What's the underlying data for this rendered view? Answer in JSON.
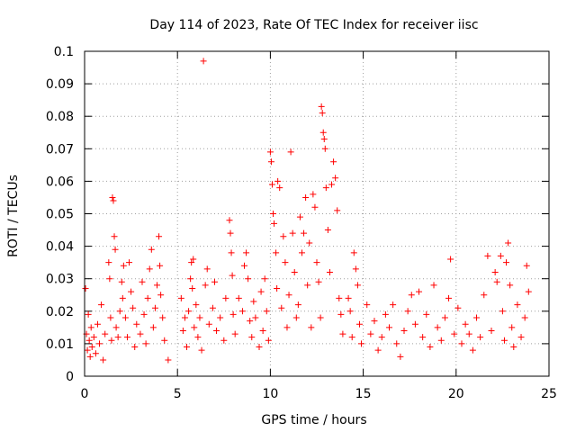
{
  "chart_data": {
    "type": "scatter",
    "title": "Day 114 of 2023, Rate Of TEC Index for receiver iisc",
    "xlabel": "GPS time / hours",
    "ylabel": "ROTI / TECUs",
    "xlim": [
      0,
      25
    ],
    "ylim": [
      0,
      0.1
    ],
    "xticks": [
      0,
      5,
      10,
      15,
      20,
      25
    ],
    "yticks": [
      0,
      0.01,
      0.02,
      0.03,
      0.04,
      0.05,
      0.06,
      0.07,
      0.08,
      0.09,
      0.1
    ],
    "xtick_labels": [
      "0",
      "5",
      "10",
      "15",
      "20",
      "25"
    ],
    "ytick_labels": [
      "0",
      "0.01",
      "0.02",
      "0.03",
      "0.04",
      "0.05",
      "0.06",
      "0.07",
      "0.08",
      "0.09",
      "0.1"
    ],
    "grid": true,
    "marker": "plus",
    "color": "#ff0000",
    "points": [
      [
        0.05,
        0.027
      ],
      [
        0.1,
        0.013
      ],
      [
        0.15,
        0.008
      ],
      [
        0.2,
        0.019
      ],
      [
        0.25,
        0.011
      ],
      [
        0.3,
        0.006
      ],
      [
        0.35,
        0.015
      ],
      [
        0.4,
        0.009
      ],
      [
        0.5,
        0.012
      ],
      [
        0.6,
        0.007
      ],
      [
        0.7,
        0.016
      ],
      [
        0.8,
        0.01
      ],
      [
        0.9,
        0.022
      ],
      [
        1.0,
        0.005
      ],
      [
        1.1,
        0.013
      ],
      [
        1.3,
        0.035
      ],
      [
        1.35,
        0.03
      ],
      [
        1.4,
        0.018
      ],
      [
        1.45,
        0.011
      ],
      [
        1.5,
        0.055
      ],
      [
        1.55,
        0.054
      ],
      [
        1.6,
        0.043
      ],
      [
        1.65,
        0.039
      ],
      [
        1.7,
        0.015
      ],
      [
        1.8,
        0.012
      ],
      [
        1.9,
        0.02
      ],
      [
        2.0,
        0.029
      ],
      [
        2.05,
        0.024
      ],
      [
        2.1,
        0.034
      ],
      [
        2.2,
        0.018
      ],
      [
        2.3,
        0.012
      ],
      [
        2.4,
        0.035
      ],
      [
        2.5,
        0.026
      ],
      [
        2.6,
        0.021
      ],
      [
        2.7,
        0.009
      ],
      [
        2.8,
        0.016
      ],
      [
        3.0,
        0.013
      ],
      [
        3.1,
        0.029
      ],
      [
        3.2,
        0.019
      ],
      [
        3.3,
        0.01
      ],
      [
        3.4,
        0.024
      ],
      [
        3.5,
        0.033
      ],
      [
        3.6,
        0.039
      ],
      [
        3.7,
        0.015
      ],
      [
        3.8,
        0.021
      ],
      [
        3.9,
        0.028
      ],
      [
        4.0,
        0.043
      ],
      [
        4.05,
        0.034
      ],
      [
        4.1,
        0.025
      ],
      [
        4.2,
        0.018
      ],
      [
        4.3,
        0.011
      ],
      [
        4.5,
        0.005
      ],
      [
        5.2,
        0.024
      ],
      [
        5.3,
        0.014
      ],
      [
        5.4,
        0.018
      ],
      [
        5.5,
        0.009
      ],
      [
        5.6,
        0.02
      ],
      [
        5.7,
        0.03
      ],
      [
        5.75,
        0.035
      ],
      [
        5.8,
        0.027
      ],
      [
        5.85,
        0.036
      ],
      [
        5.9,
        0.015
      ],
      [
        6.0,
        0.022
      ],
      [
        6.1,
        0.012
      ],
      [
        6.2,
        0.018
      ],
      [
        6.3,
        0.008
      ],
      [
        6.4,
        0.097
      ],
      [
        6.5,
        0.028
      ],
      [
        6.6,
        0.033
      ],
      [
        6.7,
        0.016
      ],
      [
        6.9,
        0.021
      ],
      [
        7.0,
        0.029
      ],
      [
        7.1,
        0.014
      ],
      [
        7.3,
        0.018
      ],
      [
        7.5,
        0.011
      ],
      [
        7.6,
        0.024
      ],
      [
        7.8,
        0.048
      ],
      [
        7.85,
        0.044
      ],
      [
        7.9,
        0.038
      ],
      [
        7.95,
        0.031
      ],
      [
        8.0,
        0.019
      ],
      [
        8.1,
        0.013
      ],
      [
        8.3,
        0.024
      ],
      [
        8.5,
        0.02
      ],
      [
        8.6,
        0.034
      ],
      [
        8.7,
        0.038
      ],
      [
        8.8,
        0.03
      ],
      [
        8.9,
        0.017
      ],
      [
        9.0,
        0.012
      ],
      [
        9.1,
        0.023
      ],
      [
        9.2,
        0.018
      ],
      [
        9.4,
        0.009
      ],
      [
        9.5,
        0.026
      ],
      [
        9.6,
        0.014
      ],
      [
        9.7,
        0.03
      ],
      [
        9.8,
        0.02
      ],
      [
        9.9,
        0.011
      ],
      [
        10.0,
        0.069
      ],
      [
        10.05,
        0.066
      ],
      [
        10.1,
        0.059
      ],
      [
        10.15,
        0.05
      ],
      [
        10.2,
        0.047
      ],
      [
        10.3,
        0.038
      ],
      [
        10.35,
        0.027
      ],
      [
        10.4,
        0.06
      ],
      [
        10.5,
        0.058
      ],
      [
        10.6,
        0.021
      ],
      [
        10.7,
        0.043
      ],
      [
        10.8,
        0.035
      ],
      [
        10.9,
        0.015
      ],
      [
        11.0,
        0.025
      ],
      [
        11.1,
        0.069
      ],
      [
        11.2,
        0.044
      ],
      [
        11.3,
        0.032
      ],
      [
        11.4,
        0.018
      ],
      [
        11.5,
        0.022
      ],
      [
        11.6,
        0.049
      ],
      [
        11.7,
        0.038
      ],
      [
        11.8,
        0.044
      ],
      [
        11.9,
        0.055
      ],
      [
        12.0,
        0.028
      ],
      [
        12.1,
        0.041
      ],
      [
        12.2,
        0.015
      ],
      [
        12.3,
        0.056
      ],
      [
        12.4,
        0.052
      ],
      [
        12.5,
        0.035
      ],
      [
        12.6,
        0.029
      ],
      [
        12.7,
        0.018
      ],
      [
        12.75,
        0.083
      ],
      [
        12.8,
        0.081
      ],
      [
        12.85,
        0.075
      ],
      [
        12.9,
        0.073
      ],
      [
        12.95,
        0.07
      ],
      [
        13.0,
        0.058
      ],
      [
        13.1,
        0.045
      ],
      [
        13.2,
        0.032
      ],
      [
        13.3,
        0.059
      ],
      [
        13.4,
        0.066
      ],
      [
        13.5,
        0.061
      ],
      [
        13.6,
        0.051
      ],
      [
        13.7,
        0.024
      ],
      [
        13.8,
        0.019
      ],
      [
        13.9,
        0.013
      ],
      [
        14.2,
        0.024
      ],
      [
        14.3,
        0.02
      ],
      [
        14.4,
        0.012
      ],
      [
        14.5,
        0.038
      ],
      [
        14.6,
        0.033
      ],
      [
        14.7,
        0.028
      ],
      [
        14.8,
        0.016
      ],
      [
        14.9,
        0.01
      ],
      [
        15.2,
        0.022
      ],
      [
        15.4,
        0.013
      ],
      [
        15.6,
        0.017
      ],
      [
        15.8,
        0.008
      ],
      [
        16.0,
        0.012
      ],
      [
        16.2,
        0.019
      ],
      [
        16.4,
        0.015
      ],
      [
        16.6,
        0.022
      ],
      [
        16.8,
        0.01
      ],
      [
        17.0,
        0.006
      ],
      [
        17.2,
        0.014
      ],
      [
        17.4,
        0.02
      ],
      [
        17.6,
        0.025
      ],
      [
        17.8,
        0.016
      ],
      [
        18.0,
        0.026
      ],
      [
        18.2,
        0.012
      ],
      [
        18.4,
        0.019
      ],
      [
        18.6,
        0.009
      ],
      [
        18.8,
        0.028
      ],
      [
        19.0,
        0.015
      ],
      [
        19.2,
        0.011
      ],
      [
        19.4,
        0.018
      ],
      [
        19.6,
        0.024
      ],
      [
        19.7,
        0.036
      ],
      [
        19.9,
        0.013
      ],
      [
        20.1,
        0.021
      ],
      [
        20.3,
        0.01
      ],
      [
        20.5,
        0.016
      ],
      [
        20.7,
        0.013
      ],
      [
        20.9,
        0.008
      ],
      [
        21.1,
        0.018
      ],
      [
        21.3,
        0.012
      ],
      [
        21.5,
        0.025
      ],
      [
        21.7,
        0.037
      ],
      [
        21.9,
        0.014
      ],
      [
        22.1,
        0.032
      ],
      [
        22.2,
        0.029
      ],
      [
        22.4,
        0.037
      ],
      [
        22.5,
        0.02
      ],
      [
        22.6,
        0.011
      ],
      [
        22.7,
        0.035
      ],
      [
        22.8,
        0.041
      ],
      [
        22.9,
        0.028
      ],
      [
        23.0,
        0.015
      ],
      [
        23.1,
        0.009
      ],
      [
        23.3,
        0.022
      ],
      [
        23.5,
        0.012
      ],
      [
        23.7,
        0.018
      ],
      [
        23.8,
        0.034
      ],
      [
        23.9,
        0.026
      ]
    ]
  }
}
